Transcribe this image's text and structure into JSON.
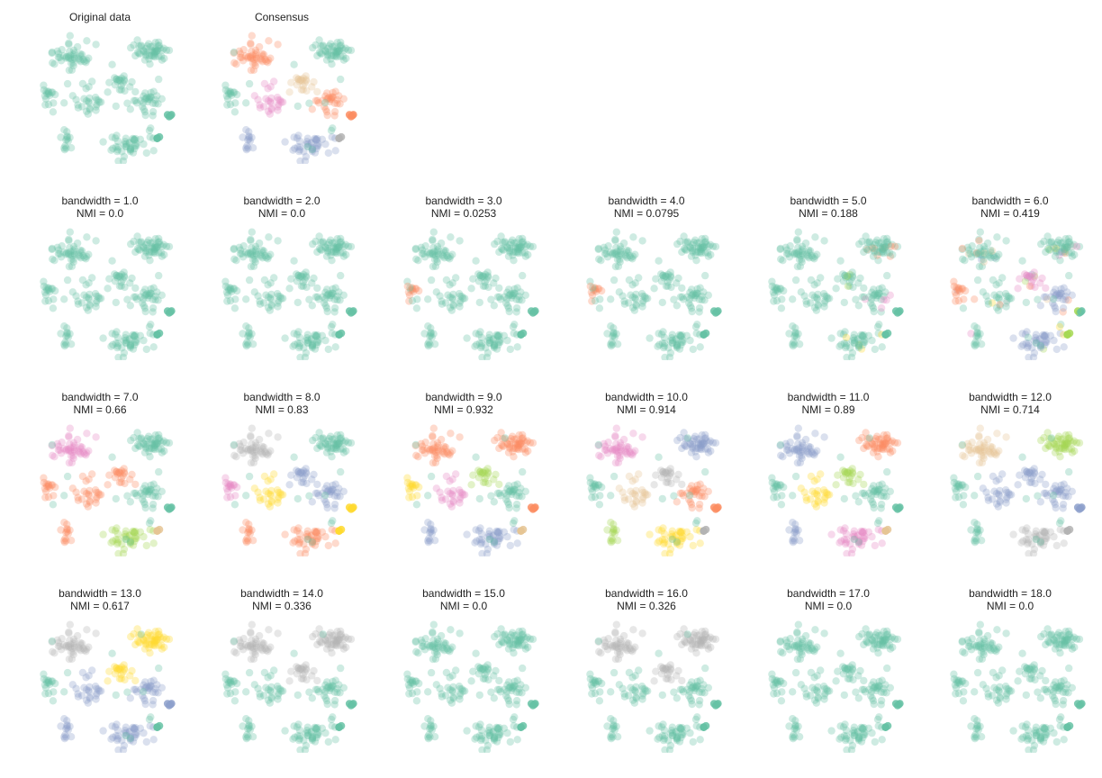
{
  "figure": {
    "palette": [
      "#66c2a5",
      "#fc8d62",
      "#8da0cb",
      "#e78ac3",
      "#a6d854",
      "#ffd92f",
      "#e5c494",
      "#b3b3b3"
    ]
  },
  "chart_data": [
    {
      "type": "scatter",
      "title": "Original data",
      "labels": "none",
      "clusters": 0
    },
    {
      "type": "scatter",
      "title": "Consensus",
      "labels": "consensus",
      "clusters": 8
    },
    {
      "type": "scatter",
      "title": "bandwidth = 1.0",
      "subtitle": "NMI = 0.0",
      "bandwidth": 1.0,
      "nmi": 0.0,
      "clusters": 1
    },
    {
      "type": "scatter",
      "title": "bandwidth = 2.0",
      "subtitle": "NMI = 0.0",
      "bandwidth": 2.0,
      "nmi": 0.0,
      "clusters": 1
    },
    {
      "type": "scatter",
      "title": "bandwidth = 3.0",
      "subtitle": "NMI = 0.0253",
      "bandwidth": 3.0,
      "nmi": 0.0253,
      "clusters": 2
    },
    {
      "type": "scatter",
      "title": "bandwidth = 4.0",
      "subtitle": "NMI = 0.0795",
      "bandwidth": 4.0,
      "nmi": 0.0795,
      "clusters": 2
    },
    {
      "type": "scatter",
      "title": "bandwidth = 5.0",
      "subtitle": "NMI = 0.188",
      "bandwidth": 5.0,
      "nmi": 0.188,
      "clusters": 5
    },
    {
      "type": "scatter",
      "title": "bandwidth = 6.0",
      "subtitle": "NMI = 0.419",
      "bandwidth": 6.0,
      "nmi": 0.419,
      "clusters": 8
    },
    {
      "type": "scatter",
      "title": "bandwidth = 7.0",
      "subtitle": "NMI = 0.66",
      "bandwidth": 7.0,
      "nmi": 0.66,
      "clusters": 8
    },
    {
      "type": "scatter",
      "title": "bandwidth = 8.0",
      "subtitle": "NMI = 0.83",
      "bandwidth": 8.0,
      "nmi": 0.83,
      "clusters": 8
    },
    {
      "type": "scatter",
      "title": "bandwidth = 9.0",
      "subtitle": "NMI = 0.932",
      "bandwidth": 9.0,
      "nmi": 0.932,
      "clusters": 8
    },
    {
      "type": "scatter",
      "title": "bandwidth = 10.0",
      "subtitle": "NMI = 0.914",
      "bandwidth": 10.0,
      "nmi": 0.914,
      "clusters": 8
    },
    {
      "type": "scatter",
      "title": "bandwidth = 11.0",
      "subtitle": "NMI = 0.89",
      "bandwidth": 11.0,
      "nmi": 0.89,
      "clusters": 8
    },
    {
      "type": "scatter",
      "title": "bandwidth = 12.0",
      "subtitle": "NMI = 0.714",
      "bandwidth": 12.0,
      "nmi": 0.714,
      "clusters": 6
    },
    {
      "type": "scatter",
      "title": "bandwidth = 13.0",
      "subtitle": "NMI = 0.617",
      "bandwidth": 13.0,
      "nmi": 0.617,
      "clusters": 4
    },
    {
      "type": "scatter",
      "title": "bandwidth = 14.0",
      "subtitle": "NMI = 0.336",
      "bandwidth": 14.0,
      "nmi": 0.336,
      "clusters": 2
    },
    {
      "type": "scatter",
      "title": "bandwidth = 15.0",
      "subtitle": "NMI = 0.0",
      "bandwidth": 15.0,
      "nmi": 0.0,
      "clusters": 1
    },
    {
      "type": "scatter",
      "title": "bandwidth = 16.0",
      "subtitle": "NMI = 0.326",
      "bandwidth": 16.0,
      "nmi": 0.326,
      "clusters": 2
    },
    {
      "type": "scatter",
      "title": "bandwidth = 17.0",
      "subtitle": "NMI = 0.0",
      "bandwidth": 17.0,
      "nmi": 0.0,
      "clusters": 1
    },
    {
      "type": "scatter",
      "title": "bandwidth = 18.0",
      "subtitle": "NMI = 0.0",
      "bandwidth": 18.0,
      "nmi": 0.0,
      "clusters": 1
    }
  ]
}
